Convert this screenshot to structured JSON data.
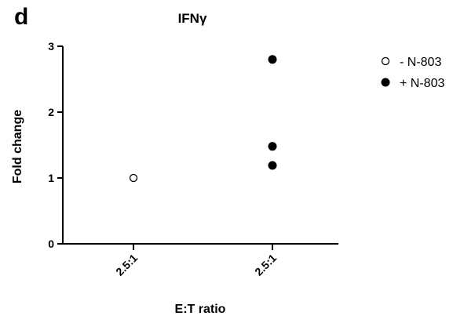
{
  "panel_letter": "d",
  "chart_data": {
    "type": "scatter",
    "title": "IFNγ",
    "xlabel": "E:T ratio",
    "ylabel": "Fold change",
    "ylim": [
      0,
      3
    ],
    "yticks": [
      0,
      1,
      2,
      3
    ],
    "categories": [
      "2.5:1",
      "2.5:1"
    ],
    "grid": false,
    "legend_position": "top-right",
    "series": [
      {
        "name": "- N-803",
        "marker": "open-circle",
        "color": "#000000",
        "points": [
          {
            "category_index": 0,
            "y": 1.0
          }
        ]
      },
      {
        "name": "+ N-803",
        "marker": "filled-circle",
        "color": "#000000",
        "points": [
          {
            "category_index": 1,
            "y": 2.8
          },
          {
            "category_index": 1,
            "y": 1.48
          },
          {
            "category_index": 1,
            "y": 1.19
          }
        ]
      }
    ]
  }
}
